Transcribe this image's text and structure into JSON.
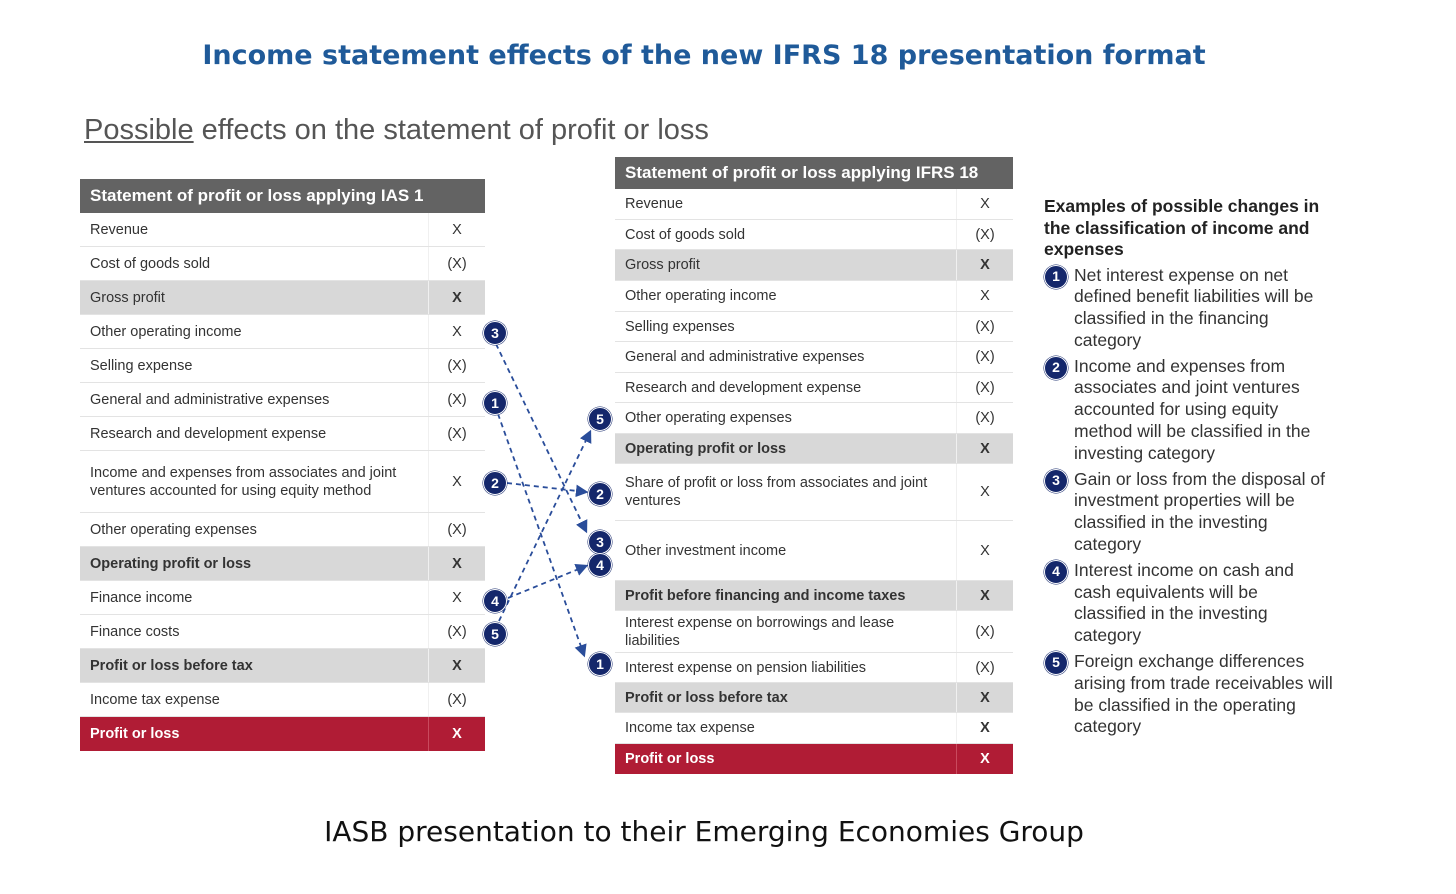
{
  "main_title": "Income statement effects of the new IFRS 18 presentation format",
  "subtitle_underlined": "Possible",
  "subtitle_rest": " effects on the statement of profit or loss",
  "footer": "IASB presentation to their Emerging Economies Group",
  "ias1": {
    "header": "Statement of profit or loss applying IAS 1",
    "rows": [
      {
        "label": "Revenue",
        "value": "X"
      },
      {
        "label": "Cost of goods sold",
        "value": "(X)"
      },
      {
        "label": "Gross profit",
        "value": "X"
      },
      {
        "label": "Other operating income",
        "value": "X"
      },
      {
        "label": "Selling expense",
        "value": "(X)"
      },
      {
        "label": "General and administrative expenses",
        "value": "(X)"
      },
      {
        "label": "Research and development expense",
        "value": "(X)"
      },
      {
        "label": "Income and expenses from associates and joint ventures accounted for using equity method",
        "value": "X"
      },
      {
        "label": "Other operating expenses",
        "value": "(X)"
      },
      {
        "label": "Operating profit or loss",
        "value": "X"
      },
      {
        "label": "Finance income",
        "value": "X"
      },
      {
        "label": "Finance costs",
        "value": "(X)"
      },
      {
        "label": "Profit or loss before tax",
        "value": "X"
      },
      {
        "label": "Income tax expense",
        "value": "(X)"
      },
      {
        "label": "Profit or loss",
        "value": "X"
      }
    ]
  },
  "ifrs18": {
    "header": "Statement of profit or loss applying IFRS 18",
    "rows": [
      {
        "label": "Revenue",
        "value": "X"
      },
      {
        "label": "Cost of goods sold",
        "value": "(X)"
      },
      {
        "label": "Gross profit",
        "value": "X"
      },
      {
        "label": "Other operating income",
        "value": "X"
      },
      {
        "label": "Selling expenses",
        "value": "(X)"
      },
      {
        "label": "General and administrative expenses",
        "value": "(X)"
      },
      {
        "label": "Research and development expense",
        "value": "(X)"
      },
      {
        "label": "Other operating expenses",
        "value": "(X)"
      },
      {
        "label": "Operating profit or loss",
        "value": "X"
      },
      {
        "label": "Share of profit or loss from associates and joint ventures",
        "value": "X"
      },
      {
        "label": "Other investment income",
        "value": "X"
      },
      {
        "label": "Profit before financing and income taxes",
        "value": "X"
      },
      {
        "label": "Interest expense on borrowings and lease liabilities",
        "value": "(X)"
      },
      {
        "label": "Interest expense on pension liabilities",
        "value": "(X)"
      },
      {
        "label": "Profit or loss before tax",
        "value": "X"
      },
      {
        "label": "Income tax expense",
        "value": "X"
      },
      {
        "label": "Profit or loss",
        "value": "X"
      }
    ]
  },
  "badges": {
    "b1": "1",
    "b2": "2",
    "b3": "3",
    "b4": "4",
    "b5": "5"
  },
  "examples": {
    "title": "Examples of possible changes in the classification of income and expenses",
    "items": [
      {
        "num": "1",
        "text": "Net interest expense on net defined benefit liabilities will be classified in the financing category"
      },
      {
        "num": "2",
        "text": "Income and expenses from associates and joint ventures accounted for using equity method will be classified in the investing category"
      },
      {
        "num": "3",
        "text": "Gain or loss from the disposal of investment properties will be classified in the investing category"
      },
      {
        "num": "4",
        "text": "Interest income on cash and cash equivalents will be classified in the investing category"
      },
      {
        "num": "5",
        "text": "Foreign exchange differences arising from trade receivables will be classified in the operating category"
      }
    ]
  },
  "colors": {
    "title": "#1f5a99",
    "header": "#636363",
    "shaded": "#d8d8d8",
    "profit_red": "#b01c35",
    "badge": "#14276b",
    "arrow": "#2a4d9a"
  }
}
